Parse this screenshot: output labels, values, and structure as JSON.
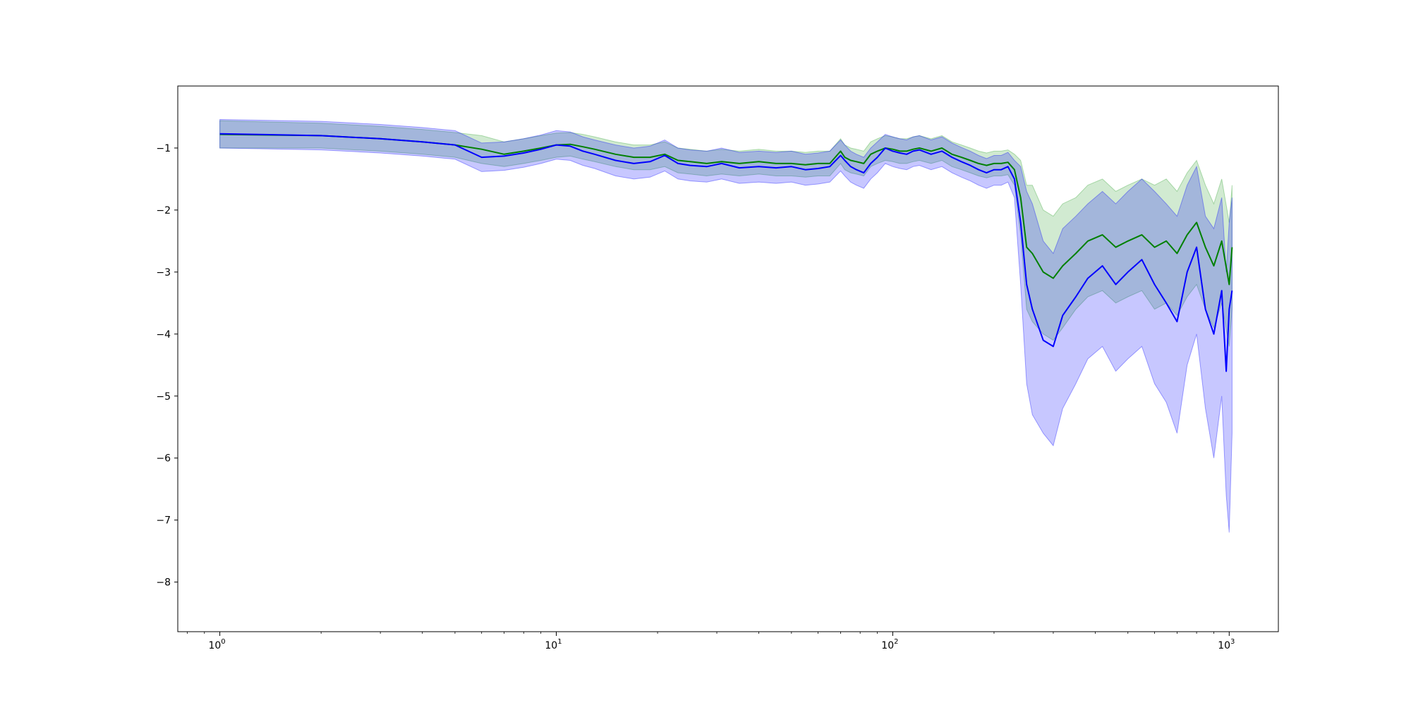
{
  "chart_data": {
    "type": "line",
    "title": "",
    "xlabel": "",
    "ylabel": "",
    "xscale": "log",
    "xlim": [
      0.75,
      1400
    ],
    "ylim": [
      -8.8,
      0.0
    ],
    "grid": false,
    "legend": false,
    "x_ticks": [
      {
        "value": 1,
        "base": "10",
        "exp": "0"
      },
      {
        "value": 10,
        "base": "10",
        "exp": "1"
      },
      {
        "value": 100,
        "base": "10",
        "exp": "2"
      },
      {
        "value": 1000,
        "base": "10",
        "exp": "3"
      }
    ],
    "y_ticks": [
      -1,
      -2,
      -3,
      -4,
      -5,
      -6,
      -7,
      -8
    ],
    "y_tick_labels": [
      "−1",
      "−2",
      "−3",
      "−4",
      "−5",
      "−6",
      "−7",
      "−8"
    ],
    "series": [
      {
        "color": "#008000",
        "band_color": "#2ca02c",
        "x": [
          1,
          2,
          3,
          4,
          5,
          6,
          7,
          8,
          9,
          10,
          11,
          12,
          13,
          15,
          17,
          19,
          21,
          23,
          25,
          28,
          31,
          35,
          40,
          45,
          50,
          55,
          60,
          65,
          70,
          72,
          75,
          78,
          82,
          86,
          90,
          95,
          100,
          105,
          110,
          115,
          120,
          130,
          140,
          150,
          160,
          170,
          180,
          190,
          200,
          210,
          220,
          230,
          240,
          250,
          260,
          280,
          300,
          320,
          350,
          380,
          420,
          460,
          500,
          550,
          600,
          650,
          700,
          750,
          800,
          850,
          900,
          950,
          1000,
          1020
        ],
        "y": [
          -0.78,
          -0.8,
          -0.85,
          -0.9,
          -0.95,
          -1.02,
          -1.1,
          -1.05,
          -1.0,
          -0.95,
          -0.94,
          -0.98,
          -1.02,
          -1.1,
          -1.15,
          -1.15,
          -1.1,
          -1.2,
          -1.22,
          -1.25,
          -1.22,
          -1.25,
          -1.22,
          -1.25,
          -1.25,
          -1.27,
          -1.25,
          -1.25,
          -1.05,
          -1.15,
          -1.2,
          -1.22,
          -1.25,
          -1.1,
          -1.05,
          -1.0,
          -1.02,
          -1.05,
          -1.05,
          -1.02,
          -1.0,
          -1.05,
          -1.0,
          -1.1,
          -1.15,
          -1.2,
          -1.25,
          -1.28,
          -1.25,
          -1.25,
          -1.23,
          -1.35,
          -1.8,
          -2.6,
          -2.7,
          -3.0,
          -3.1,
          -2.9,
          -2.7,
          -2.5,
          -2.4,
          -2.6,
          -2.5,
          -2.4,
          -2.6,
          -2.5,
          -2.7,
          -2.4,
          -2.2,
          -2.6,
          -2.9,
          -2.5,
          -3.2,
          -2.6
        ],
        "lower": [
          -1.0,
          -1.0,
          -1.05,
          -1.1,
          -1.15,
          -1.25,
          -1.3,
          -1.25,
          -1.2,
          -1.15,
          -1.13,
          -1.18,
          -1.22,
          -1.3,
          -1.35,
          -1.35,
          -1.3,
          -1.4,
          -1.42,
          -1.45,
          -1.42,
          -1.45,
          -1.42,
          -1.45,
          -1.45,
          -1.47,
          -1.45,
          -1.45,
          -1.25,
          -1.35,
          -1.4,
          -1.42,
          -1.45,
          -1.3,
          -1.25,
          -1.2,
          -1.22,
          -1.25,
          -1.25,
          -1.22,
          -1.2,
          -1.25,
          -1.2,
          -1.3,
          -1.35,
          -1.4,
          -1.45,
          -1.48,
          -1.45,
          -1.45,
          -1.43,
          -1.6,
          -2.4,
          -3.6,
          -3.8,
          -4.0,
          -4.1,
          -3.9,
          -3.6,
          -3.4,
          -3.3,
          -3.5,
          -3.4,
          -3.3,
          -3.6,
          -3.5,
          -3.7,
          -3.4,
          -3.2,
          -3.6,
          -3.9,
          -3.5,
          -4.2,
          -3.6
        ],
        "upper": [
          -0.56,
          -0.6,
          -0.65,
          -0.7,
          -0.75,
          -0.8,
          -0.9,
          -0.85,
          -0.8,
          -0.76,
          -0.75,
          -0.78,
          -0.82,
          -0.9,
          -0.95,
          -0.95,
          -0.9,
          -1.0,
          -1.02,
          -1.05,
          -1.02,
          -1.05,
          -1.02,
          -1.05,
          -1.05,
          -1.07,
          -1.05,
          -1.05,
          -0.85,
          -0.95,
          -1.0,
          -1.02,
          -1.05,
          -0.9,
          -0.85,
          -0.8,
          -0.82,
          -0.85,
          -0.85,
          -0.82,
          -0.8,
          -0.85,
          -0.8,
          -0.9,
          -0.95,
          -1.0,
          -1.05,
          -1.08,
          -1.05,
          -1.05,
          -1.03,
          -1.1,
          -1.2,
          -1.6,
          -1.6,
          -2.0,
          -2.1,
          -1.9,
          -1.8,
          -1.6,
          -1.5,
          -1.7,
          -1.6,
          -1.5,
          -1.6,
          -1.5,
          -1.7,
          -1.4,
          -1.2,
          -1.6,
          -1.9,
          -1.5,
          -2.2,
          -1.6
        ]
      },
      {
        "color": "#0000ff",
        "band_color": "#0000ff",
        "x": [
          1,
          2,
          3,
          4,
          5,
          6,
          7,
          8,
          9,
          10,
          11,
          12,
          13,
          15,
          17,
          19,
          21,
          23,
          25,
          28,
          31,
          35,
          40,
          45,
          50,
          55,
          60,
          65,
          70,
          72,
          75,
          78,
          82,
          86,
          90,
          95,
          100,
          105,
          110,
          115,
          120,
          130,
          140,
          150,
          160,
          170,
          180,
          190,
          200,
          210,
          220,
          230,
          240,
          250,
          260,
          280,
          300,
          320,
          350,
          380,
          420,
          460,
          500,
          550,
          600,
          650,
          700,
          750,
          800,
          850,
          900,
          950,
          980,
          1000,
          1020
        ],
        "y": [
          -0.77,
          -0.8,
          -0.85,
          -0.9,
          -0.95,
          -1.15,
          -1.13,
          -1.08,
          -1.02,
          -0.95,
          -0.97,
          -1.05,
          -1.1,
          -1.2,
          -1.25,
          -1.22,
          -1.12,
          -1.25,
          -1.28,
          -1.3,
          -1.25,
          -1.32,
          -1.3,
          -1.32,
          -1.3,
          -1.35,
          -1.33,
          -1.3,
          -1.12,
          -1.2,
          -1.3,
          -1.35,
          -1.4,
          -1.25,
          -1.15,
          -1.0,
          -1.05,
          -1.08,
          -1.1,
          -1.05,
          -1.03,
          -1.1,
          -1.05,
          -1.15,
          -1.22,
          -1.28,
          -1.35,
          -1.4,
          -1.35,
          -1.35,
          -1.3,
          -1.5,
          -2.2,
          -3.2,
          -3.6,
          -4.1,
          -4.2,
          -3.7,
          -3.4,
          -3.1,
          -2.9,
          -3.2,
          -3.0,
          -2.8,
          -3.2,
          -3.5,
          -3.8,
          -3.0,
          -2.6,
          -3.6,
          -4.0,
          -3.3,
          -4.6,
          -3.6,
          -3.3
        ],
        "lower": [
          -1.0,
          -1.03,
          -1.08,
          -1.13,
          -1.18,
          -1.38,
          -1.36,
          -1.31,
          -1.25,
          -1.18,
          -1.2,
          -1.28,
          -1.33,
          -1.45,
          -1.5,
          -1.47,
          -1.37,
          -1.5,
          -1.53,
          -1.55,
          -1.5,
          -1.57,
          -1.55,
          -1.57,
          -1.55,
          -1.6,
          -1.58,
          -1.55,
          -1.37,
          -1.45,
          -1.55,
          -1.6,
          -1.65,
          -1.5,
          -1.4,
          -1.25,
          -1.3,
          -1.33,
          -1.35,
          -1.3,
          -1.28,
          -1.35,
          -1.3,
          -1.4,
          -1.47,
          -1.53,
          -1.6,
          -1.65,
          -1.6,
          -1.6,
          -1.55,
          -1.8,
          -3.2,
          -4.8,
          -5.3,
          -5.6,
          -5.8,
          -5.2,
          -4.8,
          -4.4,
          -4.2,
          -4.6,
          -4.4,
          -4.2,
          -4.8,
          -5.1,
          -5.6,
          -4.5,
          -4.0,
          -5.2,
          -6.0,
          -5.0,
          -6.6,
          -7.2,
          -5.6
        ],
        "upper": [
          -0.54,
          -0.57,
          -0.62,
          -0.67,
          -0.72,
          -0.92,
          -0.9,
          -0.85,
          -0.79,
          -0.72,
          -0.74,
          -0.82,
          -0.87,
          -0.95,
          -1.0,
          -0.97,
          -0.87,
          -1.0,
          -1.03,
          -1.05,
          -1.0,
          -1.07,
          -1.05,
          -1.07,
          -1.05,
          -1.1,
          -1.08,
          -1.05,
          -0.87,
          -0.95,
          -1.05,
          -1.1,
          -1.15,
          -1.0,
          -0.9,
          -0.78,
          -0.82,
          -0.85,
          -0.87,
          -0.82,
          -0.8,
          -0.87,
          -0.82,
          -0.92,
          -0.99,
          -1.05,
          -1.12,
          -1.17,
          -1.12,
          -1.12,
          -1.07,
          -1.2,
          -1.3,
          -1.7,
          -1.9,
          -2.5,
          -2.7,
          -2.3,
          -2.1,
          -1.9,
          -1.7,
          -1.9,
          -1.7,
          -1.5,
          -1.7,
          -1.9,
          -2.1,
          -1.6,
          -1.3,
          -2.1,
          -2.3,
          -1.8,
          -3.0,
          -2.2,
          -1.8
        ]
      }
    ]
  }
}
